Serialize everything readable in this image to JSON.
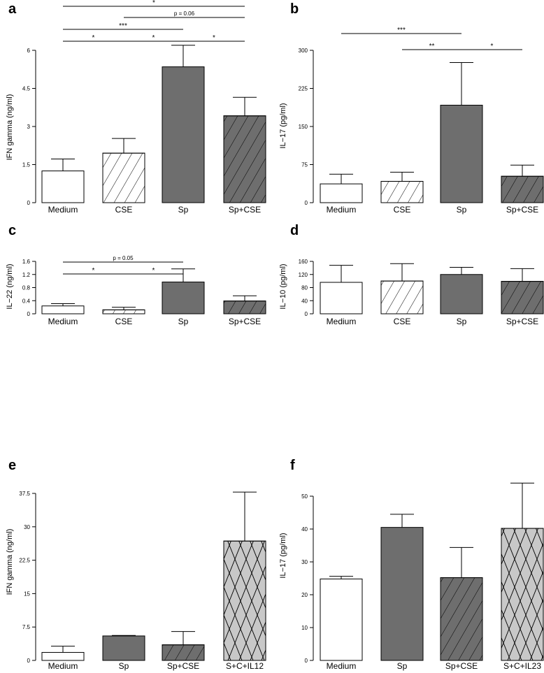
{
  "colors": {
    "white": "#ffffff",
    "gray": "#6e6e6e",
    "light_gray": "#c8c8c8",
    "ink": "#000000"
  },
  "chart_data": [
    {
      "panel": "a",
      "type": "bar",
      "ylabel": "IFN gamma (ng/ml)",
      "ylim": [
        0,
        6
      ],
      "yticks": [
        0,
        1.5,
        3,
        4.5,
        6
      ],
      "ytick_labels": [
        "0",
        "1.5",
        "3",
        "4.5",
        "6"
      ],
      "categories": [
        "Medium",
        "CSE",
        "Sp",
        "Sp+CSE"
      ],
      "values": [
        1.25,
        1.95,
        5.35,
        3.42
      ],
      "errors": [
        0.47,
        0.58,
        0.85,
        0.73
      ],
      "fills": [
        "white",
        "white",
        "gray",
        "gray"
      ],
      "patterns": [
        "none",
        "hatch",
        "none",
        "hatch"
      ],
      "significance": [
        {
          "from": 0,
          "to": 3,
          "label": "*"
        },
        {
          "from": 1,
          "to": 3,
          "label": "p = 0.06"
        },
        {
          "from": 0,
          "to": 2,
          "label": "***"
        },
        {
          "from": 0,
          "to": 1,
          "label": "*"
        },
        {
          "from": 1,
          "to": 2,
          "label": "*"
        },
        {
          "from": 2,
          "to": 3,
          "label": "*"
        }
      ]
    },
    {
      "panel": "b",
      "type": "bar",
      "ylabel": "IL−17 (pg/ml)",
      "ylim": [
        0,
        300
      ],
      "yticks": [
        0,
        75,
        150,
        225,
        300
      ],
      "ytick_labels": [
        "0",
        "75",
        "150",
        "225",
        "300"
      ],
      "categories": [
        "Medium",
        "CSE",
        "Sp",
        "Sp+CSE"
      ],
      "values": [
        37,
        42,
        192,
        52
      ],
      "errors": [
        19,
        18,
        84,
        22
      ],
      "fills": [
        "white",
        "white",
        "gray",
        "gray"
      ],
      "patterns": [
        "none",
        "hatch",
        "none",
        "hatch"
      ],
      "significance": [
        {
          "from": 0,
          "to": 2,
          "label": "***"
        },
        {
          "from": 1,
          "to": 2,
          "label": "**"
        },
        {
          "from": 2,
          "to": 3,
          "label": "*"
        }
      ]
    },
    {
      "panel": "c",
      "type": "bar",
      "ylabel": "IL−22 (ng/ml)",
      "ylim": [
        0,
        1.6
      ],
      "yticks": [
        0,
        0.4,
        0.8,
        1.2,
        1.6
      ],
      "ytick_labels": [
        "0",
        "0.4",
        "0.8",
        "1.2",
        "1.6"
      ],
      "categories": [
        "Medium",
        "CSE",
        "Sp",
        "Sp+CSE"
      ],
      "values": [
        0.24,
        0.12,
        0.97,
        0.39
      ],
      "errors": [
        0.07,
        0.08,
        0.4,
        0.16
      ],
      "fills": [
        "white",
        "white",
        "gray",
        "gray"
      ],
      "patterns": [
        "none",
        "hatch",
        "none",
        "hatch"
      ],
      "significance": [
        {
          "from": 0,
          "to": 2,
          "label": "p = 0.05"
        },
        {
          "from": 0,
          "to": 1,
          "label": "*"
        },
        {
          "from": 1,
          "to": 2,
          "label": "*"
        }
      ]
    },
    {
      "panel": "d",
      "type": "bar",
      "ylabel": "IL−10 (pg/ml)",
      "ylim": [
        0,
        160
      ],
      "yticks": [
        0,
        40,
        80,
        120,
        160
      ],
      "ytick_labels": [
        "0",
        "40",
        "80",
        "120",
        "160"
      ],
      "categories": [
        "Medium",
        "CSE",
        "Sp",
        "Sp+CSE"
      ],
      "values": [
        96,
        100,
        120,
        99
      ],
      "errors": [
        52,
        53,
        22,
        39
      ],
      "fills": [
        "white",
        "white",
        "gray",
        "gray"
      ],
      "patterns": [
        "none",
        "hatch",
        "none",
        "hatch"
      ],
      "significance": []
    },
    {
      "panel": "e",
      "type": "bar",
      "ylabel": "IFN gamma (ng/ml)",
      "ylim": [
        0,
        37.5
      ],
      "yticks": [
        0,
        7.5,
        15,
        22.5,
        30,
        37.5
      ],
      "ytick_labels": [
        "0",
        "7.5",
        "15",
        "22.5",
        "30",
        "37.5"
      ],
      "categories": [
        "Medium",
        "Sp",
        "Sp+CSE",
        "S+C+IL12"
      ],
      "values": [
        1.8,
        5.5,
        3.5,
        26.8
      ],
      "errors": [
        1.4,
        0.1,
        3.0,
        11.0
      ],
      "fills": [
        "white",
        "gray",
        "gray",
        "light_gray"
      ],
      "patterns": [
        "none",
        "none",
        "hatch",
        "cross"
      ],
      "significance": []
    },
    {
      "panel": "f",
      "type": "bar",
      "ylabel": "IL−17 (pg/ml)",
      "ylim": [
        0,
        50
      ],
      "yticks": [
        0,
        10,
        20,
        30,
        40,
        50
      ],
      "ytick_labels": [
        "0",
        "10",
        "20",
        "30",
        "40",
        "50"
      ],
      "categories": [
        "Medium",
        "Sp",
        "Sp+CSE",
        "S+C+IL23"
      ],
      "values": [
        24.8,
        40.5,
        25.2,
        40.2
      ],
      "errors": [
        0.8,
        4.0,
        9.2,
        13.8
      ],
      "fills": [
        "white",
        "gray",
        "gray",
        "light_gray"
      ],
      "patterns": [
        "none",
        "none",
        "hatch",
        "cross"
      ],
      "significance": []
    }
  ]
}
